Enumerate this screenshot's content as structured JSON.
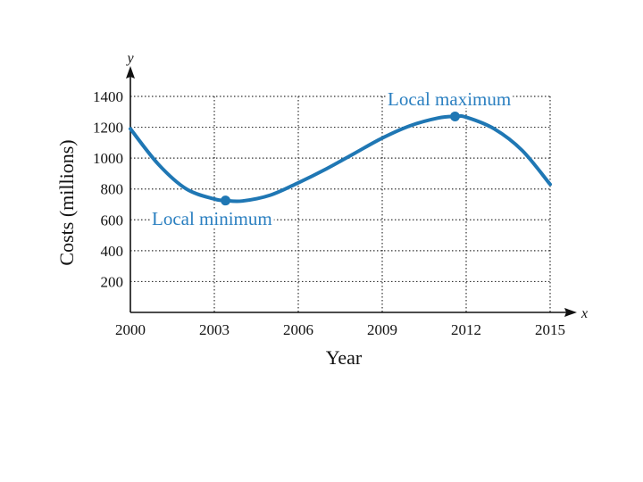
{
  "chart_data": {
    "type": "line",
    "xlabel": "Year",
    "ylabel": "Costs (millions)",
    "x_axis_var": "x",
    "y_axis_var": "y",
    "xlim": [
      2000,
      2015
    ],
    "ylim": [
      0,
      1400
    ],
    "x_ticks": [
      2000,
      2003,
      2006,
      2009,
      2012,
      2015
    ],
    "y_ticks": [
      200,
      400,
      600,
      800,
      1000,
      1200,
      1400
    ],
    "grid": true,
    "series": [
      {
        "name": "Costs",
        "color": "#1f77b4",
        "x": [
          2000,
          2001,
          2002,
          2003,
          2003.4,
          2004,
          2005,
          2006,
          2007,
          2008,
          2009,
          2010,
          2011,
          2011.6,
          2012,
          2013,
          2014,
          2015
        ],
        "y": [
          1190,
          960,
          800,
          735,
          725,
          722,
          760,
          840,
          930,
          1030,
          1130,
          1210,
          1260,
          1270,
          1265,
          1190,
          1050,
          830
        ]
      }
    ],
    "annotations": [
      {
        "text": "Local minimum",
        "x": 2003.4,
        "y": 725,
        "color": "#2a7fc0"
      },
      {
        "text": "Local maximum",
        "x": 2011.6,
        "y": 1270,
        "color": "#2a7fc0"
      }
    ]
  }
}
